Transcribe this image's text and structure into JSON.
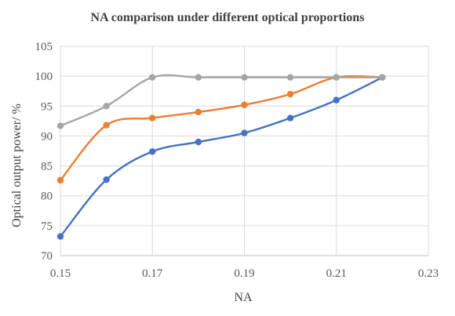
{
  "chart_data": {
    "type": "line",
    "title": "NA comparison under different optical proportions",
    "xlabel": "NA",
    "ylabel": "Optical output power/ %",
    "xlim": [
      0.15,
      0.23
    ],
    "ylim": [
      70,
      105
    ],
    "xticks": [
      "0.15",
      "0.17",
      "0.19",
      "0.21",
      "0.23"
    ],
    "yticks": [
      "70",
      "75",
      "80",
      "85",
      "90",
      "95",
      "100",
      "105"
    ],
    "grid": true,
    "legend": "none",
    "smooth": true,
    "x": [
      0.15,
      0.16,
      0.17,
      0.18,
      0.19,
      0.2,
      0.21,
      0.22
    ],
    "series": [
      {
        "color": "#4472c4",
        "values": [
          73.2,
          82.7,
          87.4,
          89.0,
          90.5,
          93.0,
          96.0,
          99.8
        ]
      },
      {
        "color": "#ed7d31",
        "values": [
          82.6,
          91.8,
          93.0,
          94.0,
          95.2,
          97.0,
          99.8,
          99.8
        ]
      },
      {
        "color": "#a5a5a5",
        "values": [
          91.7,
          95.0,
          99.8,
          99.8,
          99.8,
          99.8,
          99.8,
          99.8
        ]
      }
    ]
  }
}
